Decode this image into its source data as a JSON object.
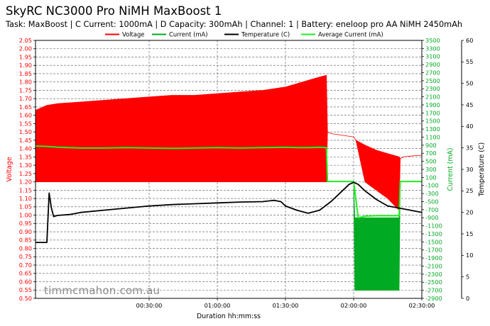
{
  "header": {
    "title": "SkyRC NC3000 Pro NiMH MaxBoost 1",
    "subtitle": "Task: MaxBoost | C Current: 1000mA | D Capacity: 300mAh | Channel: 1 | Battery: eneloop pro AA NiMH 2450mAh"
  },
  "watermark": "timmcmahon.com.au",
  "colors": {
    "voltage": "#ff0000",
    "current": "#00aa22",
    "temperature": "#000000",
    "average_current": "#22ee22"
  },
  "chart_data": {
    "type": "line",
    "title": "SkyRC NC3000 Pro NiMH MaxBoost 1",
    "xlabel": "Duration hh:mm:ss",
    "x_unit": "minutes",
    "xlim": [
      -20,
      150
    ],
    "x_ticks": [
      {
        "value": 30,
        "label": "00:30:00"
      },
      {
        "value": 60,
        "label": "01:00:00"
      },
      {
        "value": 90,
        "label": "01:30:00"
      },
      {
        "value": 120,
        "label": "02:00:00"
      },
      {
        "value": 150,
        "label": "02:30:00"
      }
    ],
    "axes": {
      "voltage": {
        "label": "Voltage",
        "side": "left",
        "lim": [
          0.5,
          2.05
        ],
        "step": 0.05
      },
      "current": {
        "label": "Current (mA)",
        "side": "right",
        "lim": [
          -2900,
          3500
        ],
        "step": 200
      },
      "temperature": {
        "label": "Temperature (C)",
        "side": "right-outer",
        "lim": [
          0,
          60
        ],
        "step": 5
      }
    },
    "grid": true,
    "legend": {
      "position": "top-center",
      "entries": [
        "Voltage",
        "Current (mA)",
        "Temperature (C)",
        "Average Current (mA)"
      ]
    },
    "series": [
      {
        "name": "Voltage",
        "axis": "voltage",
        "x": [
          -20,
          -15,
          -10,
          0,
          10,
          20,
          30,
          40,
          50,
          60,
          70,
          80,
          90,
          95,
          100,
          105,
          108,
          108.5,
          110,
          115,
          120,
          121,
          125,
          130,
          135,
          140,
          140.5,
          142,
          145,
          150
        ],
        "upper": [
          1.63,
          1.66,
          1.67,
          1.68,
          1.69,
          1.7,
          1.71,
          1.72,
          1.72,
          1.73,
          1.74,
          1.75,
          1.77,
          1.79,
          1.81,
          1.83,
          1.84,
          1.5,
          1.49,
          1.48,
          1.47,
          1.45,
          1.42,
          1.39,
          1.37,
          1.35,
          1.34,
          1.35,
          1.355,
          1.36
        ],
        "lower": [
          1.2,
          1.2,
          1.2,
          1.2,
          1.2,
          1.2,
          1.2,
          1.2,
          1.2,
          1.2,
          1.2,
          1.2,
          1.2,
          1.2,
          1.2,
          1.2,
          1.2,
          1.5,
          1.49,
          1.48,
          1.47,
          1.45,
          1.2,
          1.15,
          1.1,
          1.03,
          1.34,
          1.35,
          1.355,
          1.36
        ]
      },
      {
        "name": "Current (mA)",
        "axis": "current",
        "x": [
          -20,
          -15,
          -10,
          0,
          10,
          20,
          30,
          40,
          50,
          60,
          70,
          80,
          90,
          95,
          100,
          105,
          108,
          108.5,
          120,
          120.5,
          140,
          140.5,
          150
        ],
        "upper": [
          100,
          900,
          1000,
          1050,
          1080,
          1100,
          1120,
          1130,
          1140,
          1150,
          1160,
          1180,
          1240,
          1320,
          1400,
          1450,
          1430,
          0,
          0,
          -900,
          -900,
          0,
          0
        ],
        "lower": [
          0,
          0,
          0,
          0,
          0,
          0,
          0,
          0,
          0,
          0,
          0,
          0,
          0,
          0,
          0,
          0,
          0,
          0,
          0,
          -2700,
          -2700,
          0,
          0
        ]
      },
      {
        "name": "Temperature (C)",
        "axis": "temperature",
        "x": [
          -20,
          -15,
          -14,
          -13,
          -12,
          -11,
          -10,
          -5,
          0,
          10,
          20,
          30,
          40,
          50,
          60,
          70,
          80,
          85,
          88,
          90,
          95,
          100,
          105,
          110,
          115,
          118,
          120,
          122,
          125,
          130,
          135,
          140,
          145,
          150
        ],
        "values": [
          13.0,
          13.0,
          24.5,
          21.0,
          19.0,
          19.2,
          19.3,
          19.5,
          20.0,
          20.5,
          21.0,
          21.5,
          21.8,
          22.0,
          22.2,
          22.4,
          22.5,
          22.8,
          22.5,
          21.5,
          20.5,
          19.8,
          20.5,
          22.5,
          25.0,
          26.5,
          27.0,
          26.5,
          25.0,
          23.0,
          21.5,
          21.0,
          20.5,
          20.0
        ]
      },
      {
        "name": "Average Current (mA)",
        "axis": "current",
        "x": [
          -20,
          -15,
          -10,
          0,
          10,
          20,
          30,
          40,
          50,
          60,
          70,
          80,
          90,
          95,
          100,
          105,
          108,
          108.5,
          120,
          122,
          125,
          130,
          140,
          140.5,
          150
        ],
        "values": [
          880,
          870,
          850,
          830,
          830,
          840,
          830,
          820,
          830,
          840,
          830,
          840,
          850,
          840,
          840,
          850,
          840,
          0,
          0,
          -900,
          -860,
          -850,
          -850,
          0,
          0
        ]
      }
    ]
  }
}
